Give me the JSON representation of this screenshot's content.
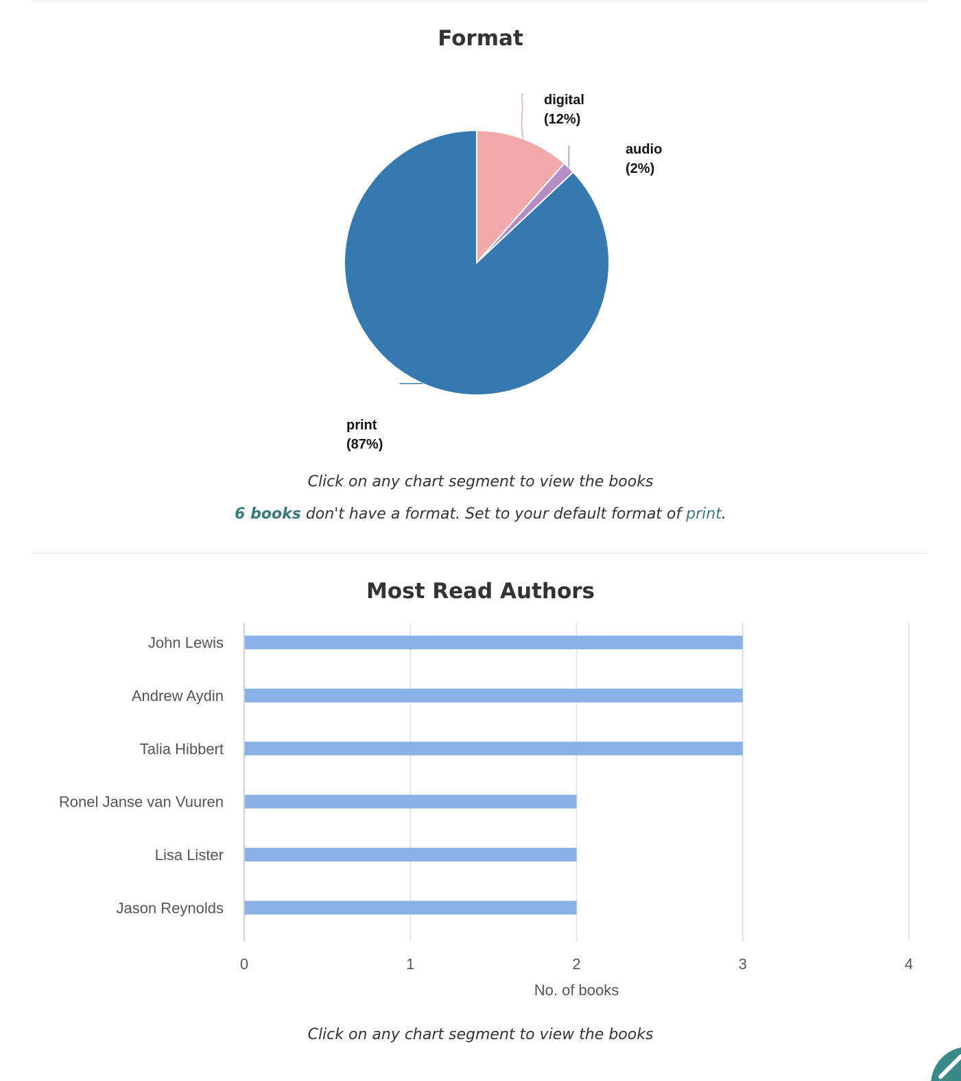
{
  "format_section": {
    "title": "Format",
    "caption": "Click on any chart segment to view the books",
    "missing_note": {
      "count_link": "6 books",
      "middle_text": " don't have a format. Set to your default format of ",
      "default_link": "print",
      "end_text": "."
    }
  },
  "authors_section": {
    "title": "Most Read Authors",
    "caption": "Click on any chart segment to view the books"
  },
  "fab": {
    "icon": "pencil-icon",
    "color": "#3a8a8a"
  },
  "chart_data": [
    {
      "type": "pie",
      "title": "Format",
      "slices": [
        {
          "label": "digital",
          "percent_label": "(12%)",
          "value": 11.5,
          "color": "#f0aaa8"
        },
        {
          "label": "audio",
          "percent_label": "(2%)",
          "value": 1.5,
          "color": "#b48cc6"
        },
        {
          "label": "print",
          "percent_label": "(87%)",
          "value": 87,
          "color": "#3679b0"
        }
      ],
      "start_angle": "12 o'clock",
      "direction": "clockwise",
      "legend": "none"
    },
    {
      "type": "bar",
      "orientation": "horizontal",
      "title": "Most Read Authors",
      "categories": [
        "John Lewis",
        "Andrew Aydin",
        "Talia Hibbert",
        "Ronel Janse van Vuuren",
        "Lisa Lister",
        "Jason Reynolds"
      ],
      "values": [
        3,
        3,
        3,
        2,
        2,
        2
      ],
      "xlabel": "No. of books",
      "ylabel": "",
      "xlim": [
        0,
        4
      ],
      "xticks": [
        0,
        1,
        2,
        3,
        4
      ],
      "grid": true,
      "bar_color": "#89b2e6",
      "legend": "none"
    }
  ]
}
